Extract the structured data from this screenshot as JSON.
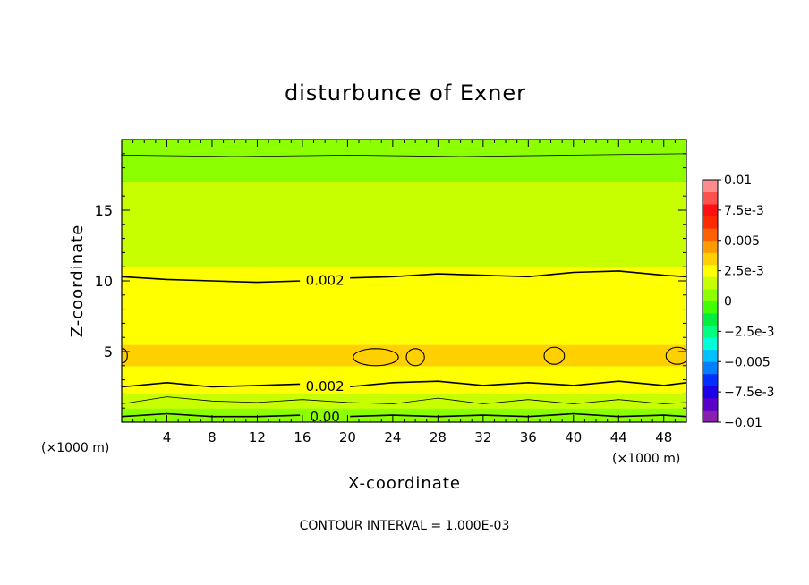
{
  "chart_data": {
    "type": "heatmap",
    "title": "disturbunce of Exner",
    "xlabel": "X-coordinate",
    "ylabel": "Z-coordinate",
    "x_unit_left": "(×1000 m)",
    "x_unit_right": "(×1000 m)",
    "footer": "CONTOUR INTERVAL = 1.000E-03",
    "xlim": [
      0,
      50
    ],
    "ylim": [
      0,
      20
    ],
    "x_ticks": [
      "4",
      "8",
      "12",
      "16",
      "20",
      "24",
      "28",
      "32",
      "36",
      "40",
      "44",
      "48"
    ],
    "y_ticks": [
      "5",
      "10",
      "15"
    ],
    "x_tick_values": [
      4,
      8,
      12,
      16,
      20,
      24,
      28,
      32,
      36,
      40,
      44,
      48
    ],
    "y_tick_values": [
      5,
      10,
      15
    ],
    "colorbar": {
      "min": -0.01,
      "max": 0.01,
      "labels": [
        "0.01",
        "7.5e-3",
        "0.005",
        "2.5e-3",
        "0",
        "−2.5e-3",
        "−0.005",
        "−7.5e-3",
        "−0.01"
      ],
      "label_values": [
        0.01,
        0.0075,
        0.005,
        0.0025,
        0,
        -0.0025,
        -0.005,
        -0.0075,
        -0.01
      ],
      "colors": [
        "#8b20b0",
        "#5a00c8",
        "#1e00e6",
        "#0030ff",
        "#0080ff",
        "#00c0ff",
        "#00ffd8",
        "#00ff80",
        "#00ee40",
        "#40ff00",
        "#8cff00",
        "#c8ff00",
        "#ffff00",
        "#ffd000",
        "#ff9a00",
        "#ff6000",
        "#ff2a00",
        "#ff1010",
        "#ff5050",
        "#ff8c8c"
      ]
    },
    "profile": {
      "z": [
        0,
        0.3,
        0.6,
        1.0,
        1.5,
        2.0,
        2.5,
        3.0,
        3.5,
        4.0,
        4.5,
        5.0,
        5.5,
        6.0,
        6.5,
        7.0,
        8.0,
        9.0,
        10.0,
        11.0,
        12.0,
        13.0,
        14.0,
        15.0,
        15.5,
        16.0,
        17.0,
        18.0,
        19.0,
        20.0
      ],
      "value": [
        0.0001,
        0.0004,
        0.0008,
        0.0012,
        0.0016,
        0.0019,
        0.0022,
        0.0025,
        0.0027,
        0.0029,
        0.0031,
        0.0031,
        0.0029,
        0.0028,
        0.0027,
        0.0026,
        0.0025,
        0.0023,
        0.0021,
        0.0019,
        0.0018,
        0.0017,
        0.0016,
        0.0015,
        0.0014,
        0.0012,
        0.001,
        0.0008,
        0.0006,
        0.0005
      ]
    },
    "contours": [
      {
        "label": "0.00",
        "label_x": 18.0,
        "x": [
          0,
          4,
          8,
          12,
          16,
          20,
          24,
          28,
          32,
          36,
          40,
          44,
          48,
          50
        ],
        "z": [
          0.4,
          0.6,
          0.4,
          0.4,
          0.5,
          0.4,
          0.5,
          0.4,
          0.5,
          0.4,
          0.6,
          0.4,
          0.5,
          0.4
        ]
      },
      {
        "label": "",
        "label_x": null,
        "x": [
          0,
          4,
          8,
          12,
          16,
          20,
          24,
          28,
          32,
          36,
          40,
          44,
          48,
          50
        ],
        "z": [
          1.3,
          1.8,
          1.5,
          1.4,
          1.6,
          1.4,
          1.3,
          1.7,
          1.3,
          1.6,
          1.3,
          1.6,
          1.3,
          1.4
        ]
      },
      {
        "label": "0.002",
        "label_x": 18.0,
        "x": [
          0,
          4,
          8,
          12,
          16,
          20,
          24,
          28,
          32,
          36,
          40,
          44,
          48,
          50
        ],
        "z": [
          2.5,
          2.8,
          2.5,
          2.6,
          2.7,
          2.5,
          2.8,
          2.9,
          2.6,
          2.8,
          2.6,
          2.9,
          2.6,
          2.8
        ]
      },
      {
        "label": "0.002",
        "label_x": 18.0,
        "x": [
          0,
          4,
          8,
          12,
          16,
          20,
          24,
          28,
          32,
          36,
          40,
          44,
          48,
          50
        ],
        "z": [
          10.3,
          10.1,
          10.0,
          9.9,
          10.0,
          10.2,
          10.3,
          10.5,
          10.4,
          10.3,
          10.6,
          10.7,
          10.4,
          10.3
        ]
      },
      {
        "label": "",
        "label_x": null,
        "x": [
          0,
          10,
          20,
          30,
          40,
          50
        ],
        "z": [
          18.9,
          18.8,
          18.9,
          18.8,
          18.9,
          19.0
        ]
      }
    ],
    "closed_contours": [
      {
        "x": 22.5,
        "z": 4.6,
        "rx": 2.0,
        "rz": 0.6
      },
      {
        "x": 26.0,
        "z": 4.6,
        "rx": 0.8,
        "rz": 0.6
      },
      {
        "x": 38.3,
        "z": 4.7,
        "rx": 0.9,
        "rz": 0.6
      },
      {
        "x": 49.2,
        "z": 4.7,
        "rx": 1.0,
        "rz": 0.6
      },
      {
        "x": 0.1,
        "z": 4.7,
        "rx": 0.4,
        "rz": 0.5
      }
    ]
  }
}
